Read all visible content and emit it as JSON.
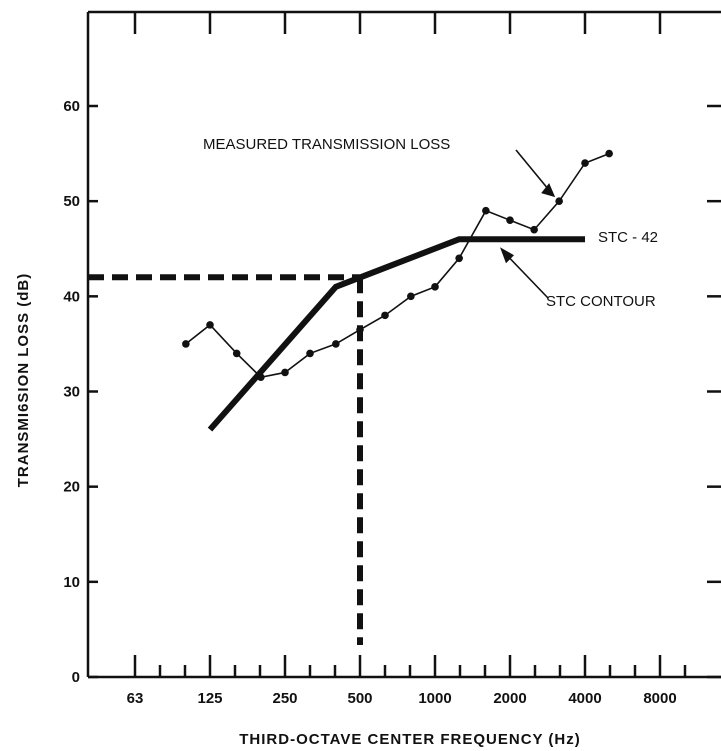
{
  "chart_data": {
    "type": "line",
    "xlabel": "THIRD-OCTAVE CENTER FREQUENCY (Hz)",
    "ylabel": "TRANSMI6SION LOSS (dB)",
    "ylim": [
      0,
      70
    ],
    "x_scale": "log",
    "x_tick_labels": [
      "63",
      "125",
      "250",
      "500",
      "1000",
      "2000",
      "4000",
      "8000"
    ],
    "y_tick_labels": [
      "0",
      "10",
      "20",
      "30",
      "40",
      "50",
      "60"
    ],
    "grid": false,
    "series": [
      {
        "name": "MEASURED TRANSMISSION LOSS",
        "style": "thin line with dot markers",
        "x": [
          100,
          125,
          160,
          200,
          250,
          315,
          400,
          500,
          630,
          800,
          1000,
          1250,
          1600,
          2000,
          2500,
          3150,
          4000,
          5000
        ],
        "values": [
          35,
          37,
          34,
          31.5,
          32,
          34,
          35,
          36.5,
          38,
          40,
          41,
          44,
          49,
          48,
          47,
          50,
          54,
          55
        ]
      },
      {
        "name": "STC CONTOUR",
        "style": "thick line",
        "x": [
          125,
          400,
          1250,
          4000
        ],
        "values": [
          26,
          41,
          46,
          46
        ]
      }
    ],
    "reference_lines": {
      "style": "thick dashed",
      "stc_value": 42,
      "frequency": 500
    },
    "annotations": [
      {
        "text": "MEASURED TRANSMISSION LOSS"
      },
      {
        "text": "STC - 42"
      },
      {
        "text": "STC CONTOUR"
      }
    ]
  },
  "colors": {
    "ink": "#111111",
    "background": "#ffffff"
  }
}
